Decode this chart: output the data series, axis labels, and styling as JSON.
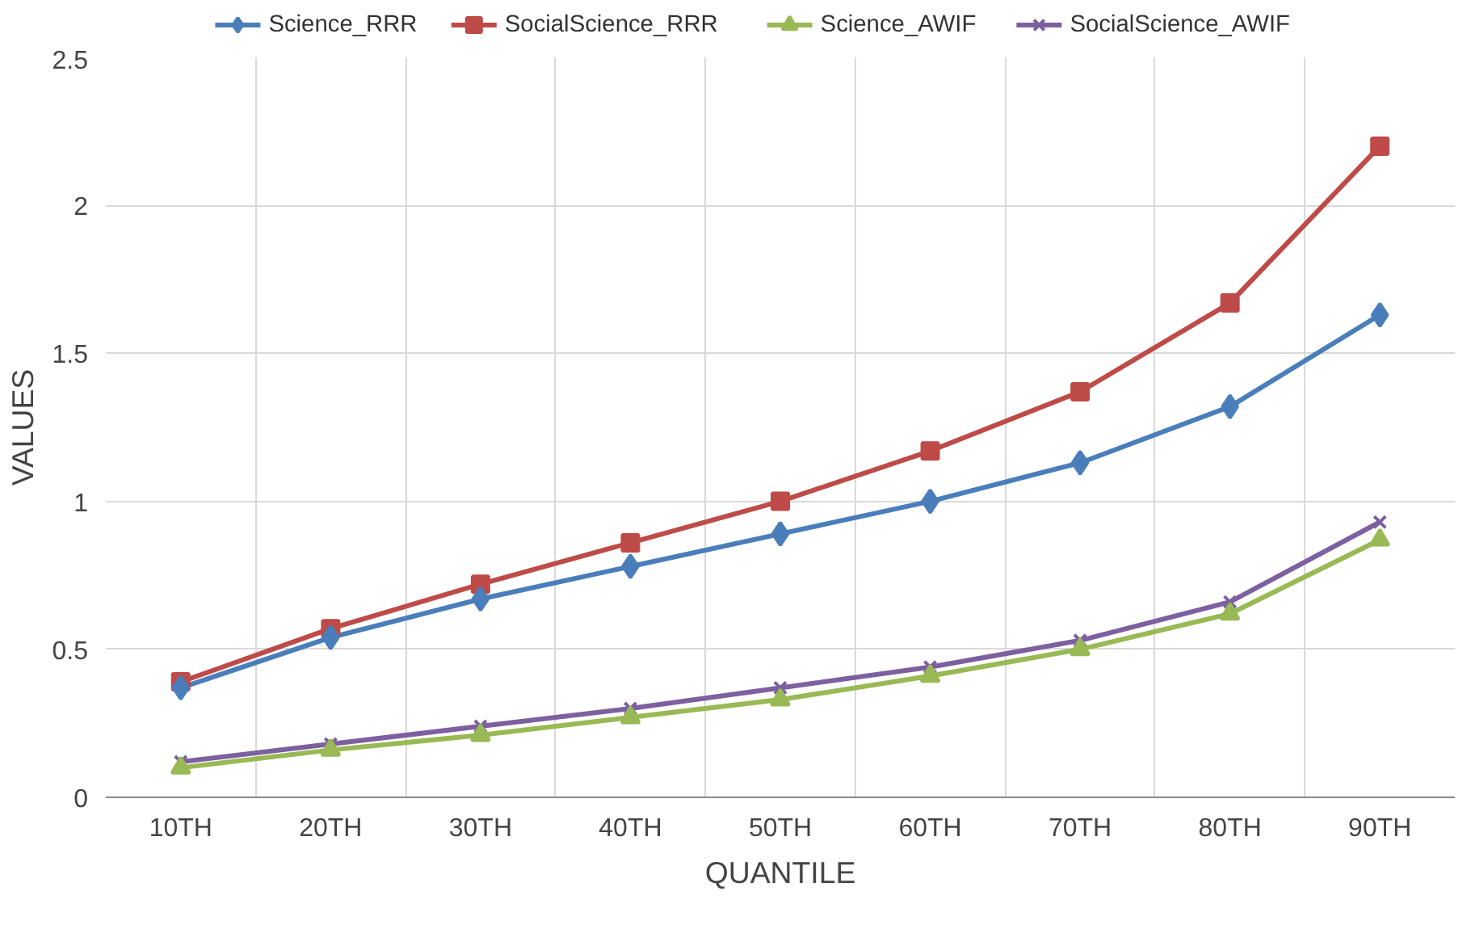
{
  "chart_data": {
    "type": "line",
    "xlabel": "QUANTILE",
    "ylabel": "VALUES",
    "categories": [
      "10TH",
      "20TH",
      "30TH",
      "40TH",
      "50TH",
      "60TH",
      "70TH",
      "80TH",
      "90TH"
    ],
    "series": [
      {
        "name": "Science_RRR",
        "color": "#4a7ebb",
        "marker": "diamond",
        "values": [
          0.37,
          0.54,
          0.67,
          0.78,
          0.89,
          1.0,
          1.13,
          1.32,
          1.63
        ]
      },
      {
        "name": "SocialScience_RRR",
        "color": "#be4b48",
        "marker": "square",
        "values": [
          0.39,
          0.57,
          0.72,
          0.86,
          1.0,
          1.17,
          1.37,
          1.67,
          2.2
        ]
      },
      {
        "name": "Science_AWIF",
        "color": "#98b954",
        "marker": "triangle",
        "values": [
          0.1,
          0.16,
          0.21,
          0.27,
          0.33,
          0.41,
          0.5,
          0.62,
          0.87
        ]
      },
      {
        "name": "SocialScience_AWIF",
        "color": "#7d60a0",
        "marker": "cross",
        "values": [
          0.12,
          0.18,
          0.24,
          0.3,
          0.37,
          0.44,
          0.53,
          0.66,
          0.93
        ]
      }
    ],
    "ylim": [
      0,
      2.5
    ],
    "yticks": [
      0,
      0.5,
      1,
      1.5,
      2,
      2.5
    ],
    "grid": true,
    "legend": "top",
    "line_style": "solid"
  }
}
